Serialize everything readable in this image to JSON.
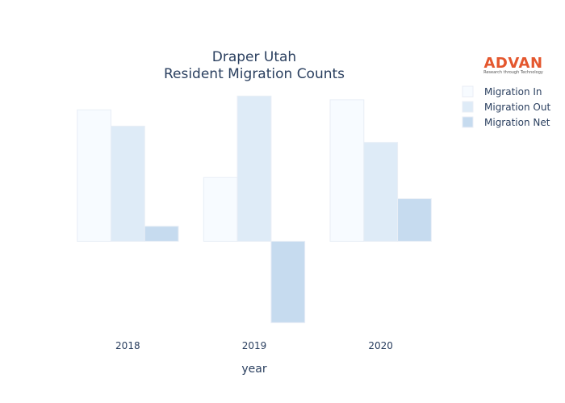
{
  "chart_data": {
    "type": "bar",
    "title": [
      "Draper Utah",
      "Resident Migration Counts"
    ],
    "xlabel": "year",
    "ylabel": "",
    "categories": [
      "2018",
      "2019",
      "2020"
    ],
    "series": [
      {
        "name": "Migration In",
        "values": [
          1050,
          510,
          1130
        ],
        "color": "#f7fbff"
      },
      {
        "name": "Migration Out",
        "values": [
          920,
          1160,
          790
        ],
        "color": "#deebf7"
      },
      {
        "name": "Migration Net",
        "values": [
          120,
          -650,
          340
        ],
        "color": "#c6dbef"
      }
    ],
    "ylim": [
      -680,
      1200
    ],
    "yticks_shown": false,
    "grid": false,
    "legend_position": "top-right"
  },
  "logo": {
    "name": "ADVAN",
    "tagline": "Research through Technology",
    "color": "#e4572e"
  }
}
